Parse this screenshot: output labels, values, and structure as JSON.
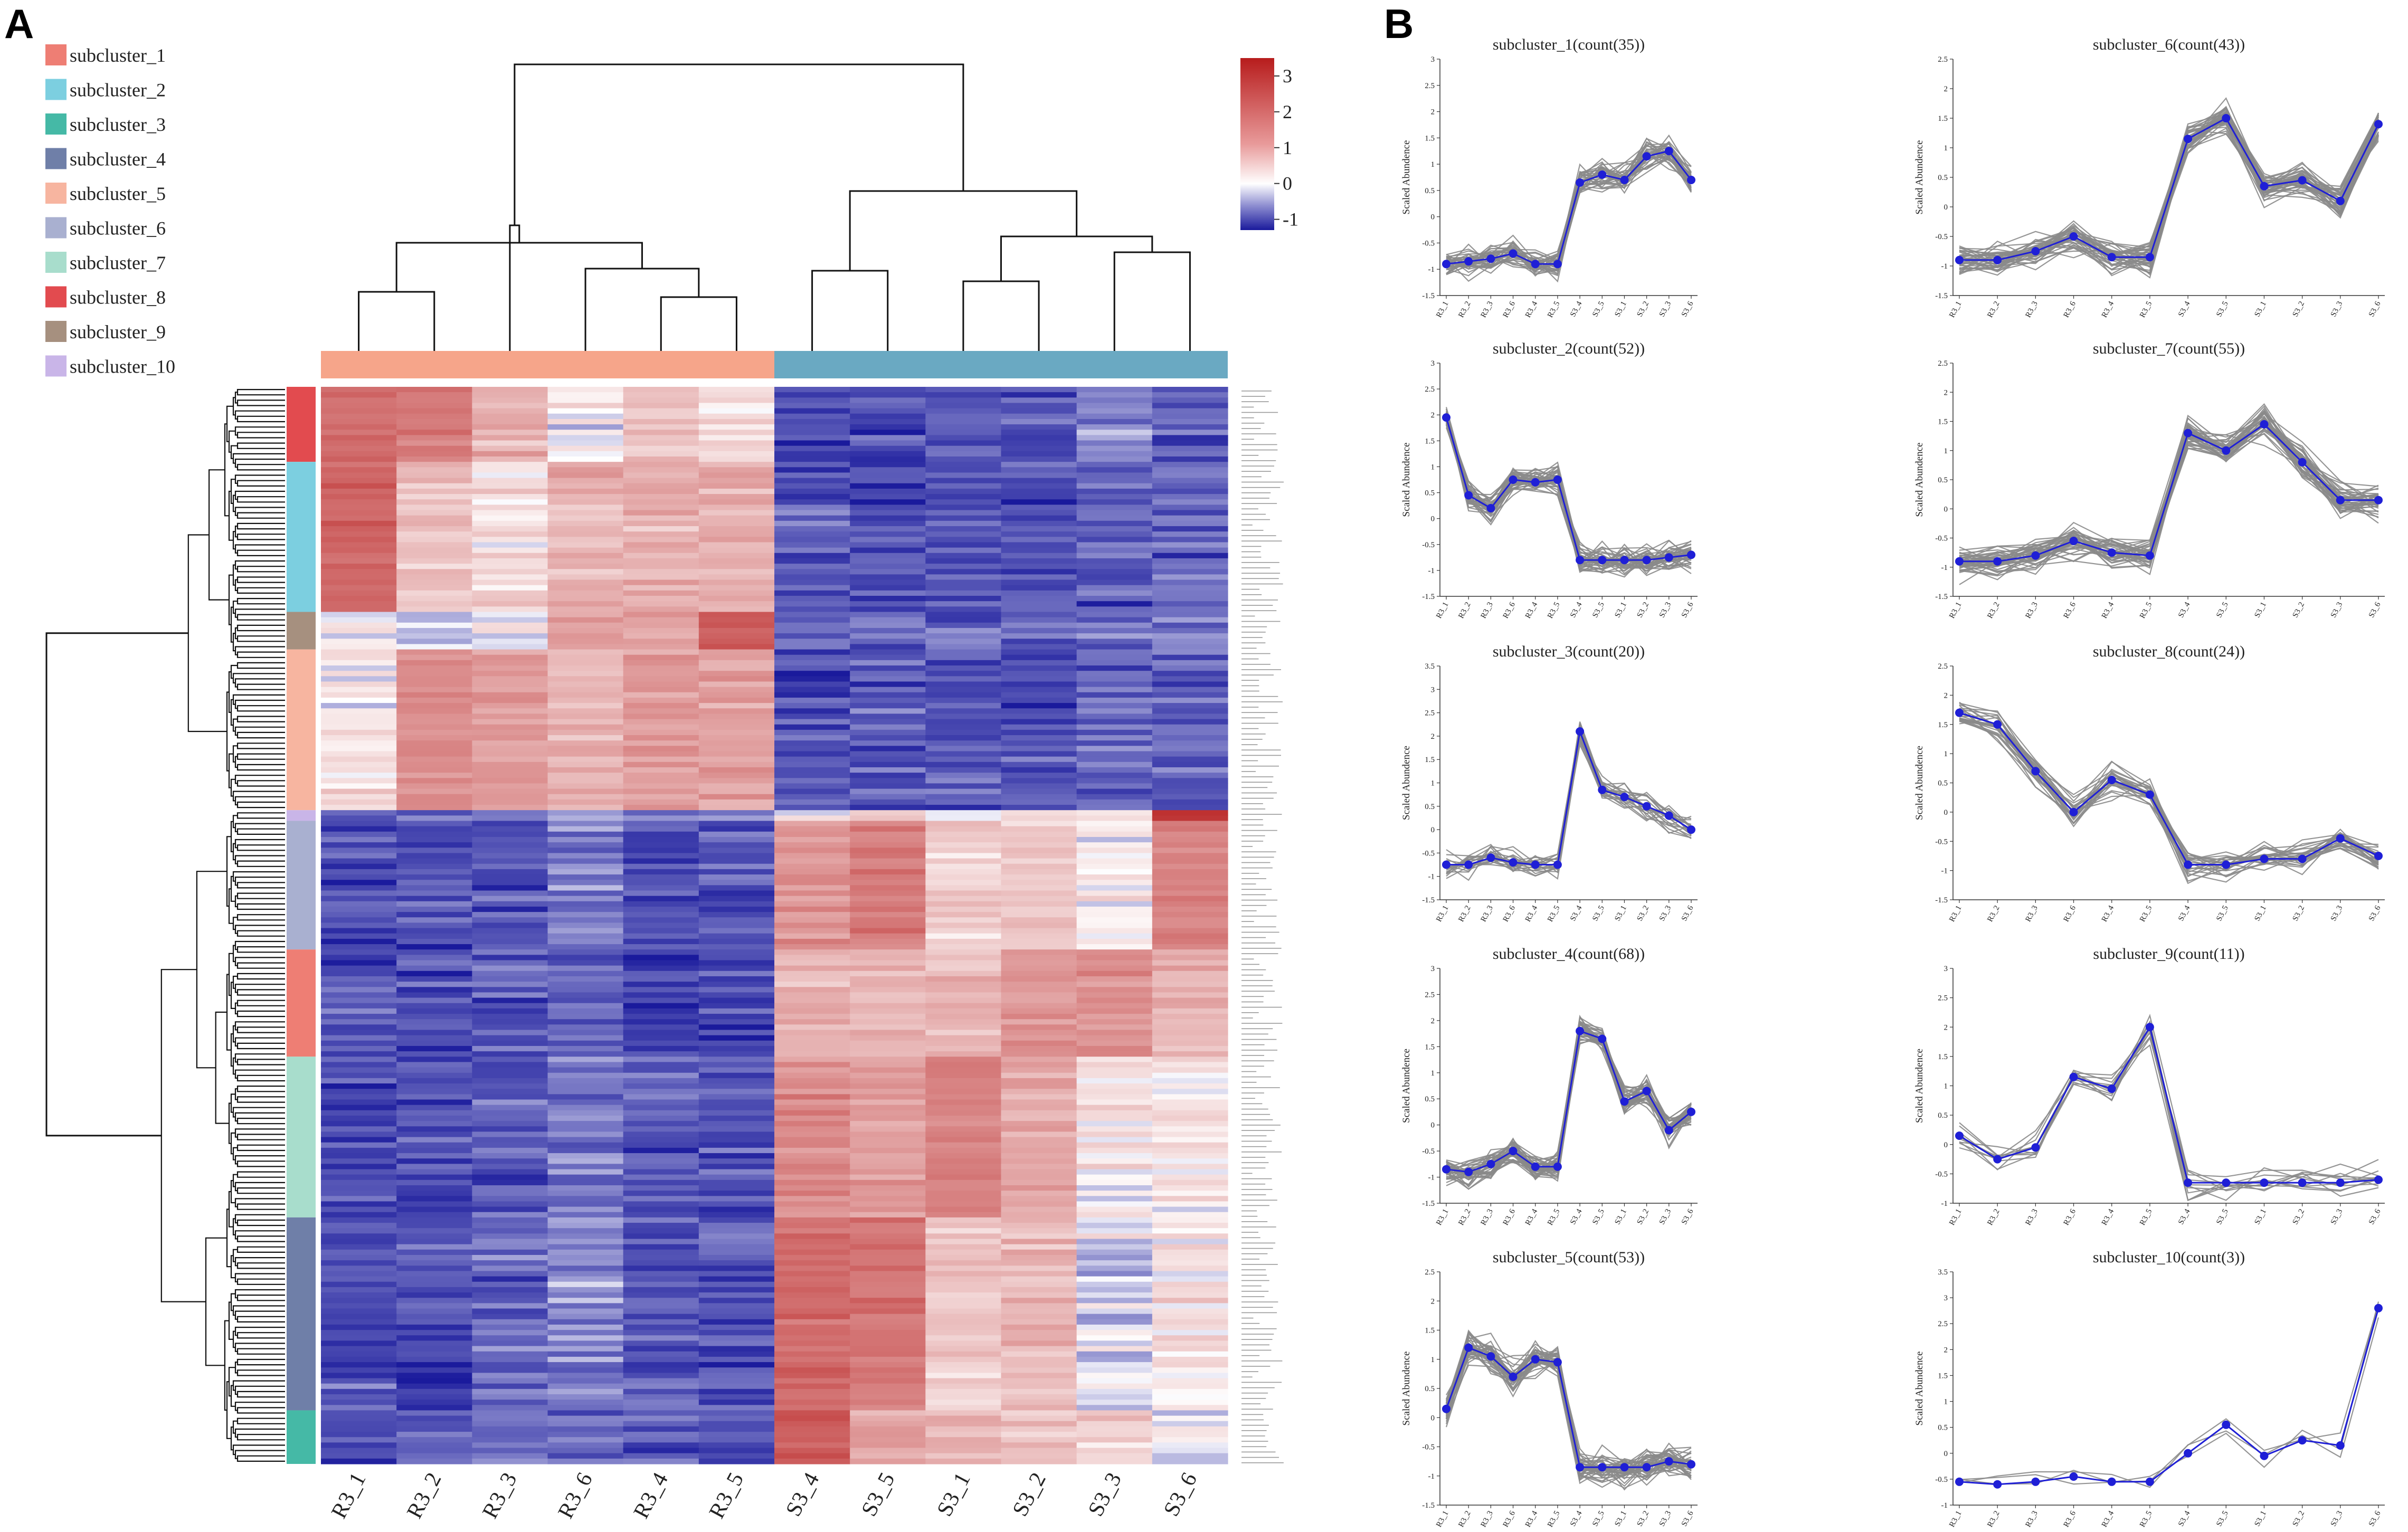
{
  "panels": {
    "a": "A",
    "b": "B"
  },
  "heatmap": {
    "columns": [
      "R3_1",
      "R3_2",
      "R3_3",
      "R3_6",
      "R3_4",
      "R3_5",
      "S3_4",
      "S3_5",
      "S3_1",
      "S3_2",
      "S3_3",
      "S3_6"
    ],
    "group_colors": [
      "#F6A58A",
      "#6AA9C2"
    ],
    "colorbar": {
      "ticks": [
        "3",
        "2",
        "1",
        "0",
        "-1"
      ],
      "min": -1.3,
      "max": 3.5,
      "low": "#1A1A9C",
      "mid": "#FFFFFF",
      "high": "#B71C1C"
    },
    "legend": [
      {
        "label": "subcluster_1",
        "color": "#EE7E74"
      },
      {
        "label": "subcluster_2",
        "color": "#7CCFE0"
      },
      {
        "label": "subcluster_3",
        "color": "#45B9A6"
      },
      {
        "label": "subcluster_4",
        "color": "#6F7FA8"
      },
      {
        "label": "subcluster_5",
        "color": "#F7B5A0"
      },
      {
        "label": "subcluster_6",
        "color": "#A9B0D0"
      },
      {
        "label": "subcluster_7",
        "color": "#A8DDCC"
      },
      {
        "label": "subcluster_8",
        "color": "#E24B4F"
      },
      {
        "label": "subcluster_9",
        "color": "#A6907F"
      },
      {
        "label": "subcluster_10",
        "color": "#C9B5E8"
      }
    ],
    "row_blocks": [
      {
        "cluster": "subcluster_8",
        "rows": 14
      },
      {
        "cluster": "subcluster_2",
        "rows": 28
      },
      {
        "cluster": "subcluster_9",
        "rows": 7
      },
      {
        "cluster": "subcluster_5",
        "rows": 30
      },
      {
        "cluster": "subcluster_10",
        "rows": 2
      },
      {
        "cluster": "subcluster_6",
        "rows": 24
      },
      {
        "cluster": "subcluster_1",
        "rows": 20
      },
      {
        "cluster": "subcluster_7",
        "rows": 30
      },
      {
        "cluster": "subcluster_4",
        "rows": 36
      },
      {
        "cluster": "subcluster_3",
        "rows": 10
      }
    ]
  },
  "chart_data": {
    "type": "line",
    "x": [
      "R3_1",
      "R3_2",
      "R3_3",
      "R3_6",
      "R3_4",
      "R3_5",
      "S3_4",
      "S3_5",
      "S3_1",
      "S3_2",
      "S3_3",
      "S3_6"
    ],
    "ylabel": "Scaled Abundence",
    "series": [
      {
        "title": "subcluster_1(count(35))",
        "ylim": [
          -1.5,
          3
        ],
        "yticks": [
          "-1.5",
          "-1",
          "-0.5",
          "0",
          "0.5",
          "1",
          "1.5",
          "2",
          "2.5",
          "3"
        ],
        "mean": [
          -0.9,
          -0.85,
          -0.8,
          -0.7,
          -0.9,
          -0.9,
          0.65,
          0.8,
          0.7,
          1.15,
          1.25,
          0.7
        ]
      },
      {
        "title": "subcluster_6(count(43))",
        "ylim": [
          -1.5,
          2.5
        ],
        "yticks": [
          "-1.5",
          "-1",
          "-0.5",
          "0",
          "0.5",
          "1",
          "1.5",
          "2",
          "2.5"
        ],
        "mean": [
          -0.9,
          -0.9,
          -0.75,
          -0.5,
          -0.85,
          -0.85,
          1.15,
          1.5,
          0.35,
          0.45,
          0.1,
          1.4
        ]
      },
      {
        "title": "subcluster_2(count(52))",
        "ylim": [
          -1.5,
          3
        ],
        "yticks": [
          "-1.5",
          "-1",
          "-0.5",
          "0",
          "0.5",
          "1",
          "1.5",
          "2",
          "2.5",
          "3"
        ],
        "mean": [
          1.95,
          0.45,
          0.2,
          0.75,
          0.7,
          0.75,
          -0.8,
          -0.8,
          -0.8,
          -0.8,
          -0.75,
          -0.7
        ]
      },
      {
        "title": "subcluster_7(count(55))",
        "ylim": [
          -1.5,
          2.5
        ],
        "yticks": [
          "-1.5",
          "-1",
          "-0.5",
          "0",
          "0.5",
          "1",
          "1.5",
          "2",
          "2.5"
        ],
        "mean": [
          -0.9,
          -0.9,
          -0.8,
          -0.55,
          -0.75,
          -0.8,
          1.3,
          1.0,
          1.45,
          0.8,
          0.15,
          0.15
        ]
      },
      {
        "title": "subcluster_3(count(20))",
        "ylim": [
          -1.5,
          3.5
        ],
        "yticks": [
          "-1.5",
          "-1",
          "-0.5",
          "0",
          "0.5",
          "1",
          "1.5",
          "2",
          "2.5",
          "3",
          "3.5"
        ],
        "mean": [
          -0.75,
          -0.75,
          -0.6,
          -0.7,
          -0.75,
          -0.75,
          2.1,
          0.85,
          0.7,
          0.5,
          0.3,
          0.0
        ]
      },
      {
        "title": "subcluster_8(count(24))",
        "ylim": [
          -1.5,
          2.5
        ],
        "yticks": [
          "-1.5",
          "-1",
          "-0.5",
          "0",
          "0.5",
          "1",
          "1.5",
          "2",
          "2.5"
        ],
        "mean": [
          1.7,
          1.5,
          0.7,
          0.0,
          0.55,
          0.3,
          -0.9,
          -0.9,
          -0.8,
          -0.8,
          -0.45,
          -0.75
        ]
      },
      {
        "title": "subcluster_4(count(68))",
        "ylim": [
          -1.5,
          3
        ],
        "yticks": [
          "-1.5",
          "-1",
          "-0.5",
          "0",
          "0.5",
          "1",
          "1.5",
          "2",
          "2.5",
          "3"
        ],
        "mean": [
          -0.85,
          -0.9,
          -0.75,
          -0.5,
          -0.8,
          -0.8,
          1.8,
          1.65,
          0.45,
          0.65,
          -0.1,
          0.25
        ]
      },
      {
        "title": "subcluster_9(count(11))",
        "ylim": [
          -1,
          3
        ],
        "yticks": [
          "-1",
          "-0.5",
          "0",
          "0.5",
          "1",
          "1.5",
          "2",
          "2.5",
          "3"
        ],
        "mean": [
          0.15,
          -0.25,
          -0.05,
          1.15,
          0.95,
          2.0,
          -0.65,
          -0.65,
          -0.65,
          -0.65,
          -0.65,
          -0.6
        ]
      },
      {
        "title": "subcluster_5(count(53))",
        "ylim": [
          -1.5,
          2.5
        ],
        "yticks": [
          "-1.5",
          "-1",
          "-0.5",
          "0",
          "0.5",
          "1",
          "1.5",
          "2",
          "2.5"
        ],
        "mean": [
          0.15,
          1.2,
          1.05,
          0.7,
          1.0,
          0.95,
          -0.85,
          -0.85,
          -0.85,
          -0.85,
          -0.75,
          -0.8
        ]
      },
      {
        "title": "subcluster_10(count(3))",
        "ylim": [
          -1,
          3.5
        ],
        "yticks": [
          "-1",
          "-0.5",
          "0",
          "0.5",
          "1",
          "1.5",
          "2",
          "2.5",
          "3",
          "3.5"
        ],
        "mean": [
          -0.55,
          -0.6,
          -0.55,
          -0.45,
          -0.55,
          -0.55,
          0.0,
          0.55,
          -0.05,
          0.25,
          0.15,
          2.8
        ]
      }
    ]
  }
}
